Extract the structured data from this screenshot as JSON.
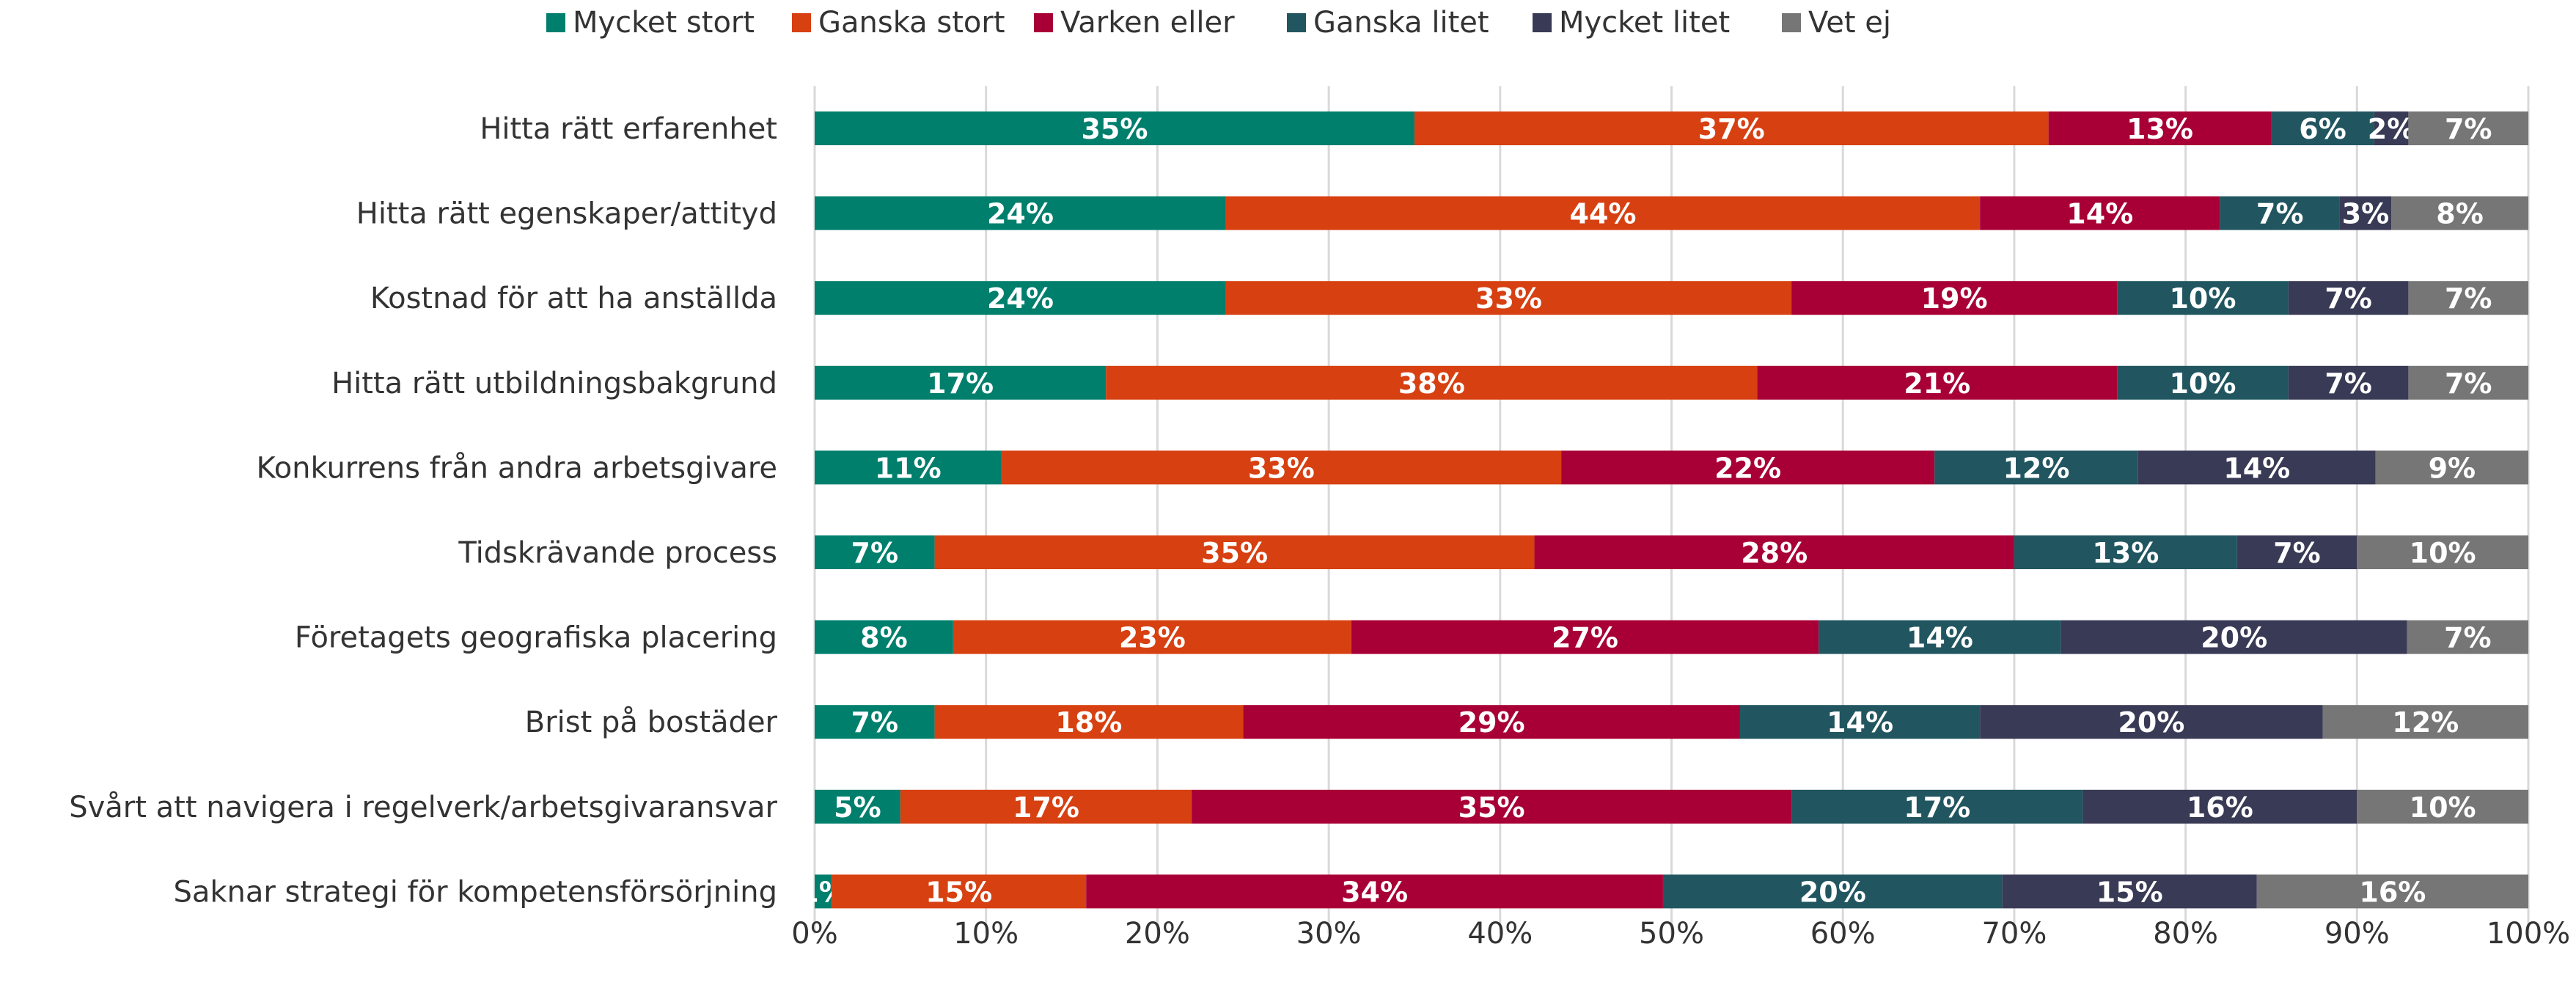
{
  "chart_data": {
    "type": "bar",
    "orientation": "horizontal",
    "stacked": "percent",
    "title": "",
    "xlabel": "",
    "ylabel": "",
    "xlim": [
      0,
      100
    ],
    "x_ticks": [
      "0%",
      "10%",
      "20%",
      "30%",
      "40%",
      "50%",
      "60%",
      "70%",
      "80%",
      "90%",
      "100%"
    ],
    "grid": "vertical",
    "legend_position": "top",
    "categories": [
      "Hitta rätt erfarenhet",
      "Hitta rätt egenskaper/attityd",
      "Kostnad för att ha anställda",
      "Hitta rätt utbildningsbakgrund",
      "Konkurrens från andra arbetsgivare",
      "Tidskrävande process",
      "Företagets geografiska placering",
      "Brist på bostäder",
      "Svårt att navigera i regelverk/arbetsgivaransvar",
      "Saknar strategi för kompetensförsörjning"
    ],
    "series": [
      {
        "name": "Mycket stort",
        "color": "#007f6d",
        "values": [
          35,
          24,
          24,
          17,
          11,
          7,
          8,
          7,
          5,
          1
        ]
      },
      {
        "name": "Ganska stort",
        "color": "#d74011",
        "values": [
          37,
          44,
          33,
          38,
          33,
          35,
          23,
          18,
          17,
          15
        ]
      },
      {
        "name": "Varken eller",
        "color": "#a80036",
        "values": [
          13,
          14,
          19,
          21,
          22,
          28,
          27,
          29,
          35,
          34
        ]
      },
      {
        "name": "Ganska litet",
        "color": "#215660",
        "values": [
          6,
          7,
          10,
          10,
          12,
          13,
          14,
          14,
          17,
          20
        ]
      },
      {
        "name": "Mycket litet",
        "color": "#393a55",
        "values": [
          2,
          3,
          7,
          7,
          14,
          7,
          20,
          20,
          16,
          15
        ]
      },
      {
        "name": "Vet ej",
        "color": "#767676",
        "values": [
          7,
          8,
          7,
          7,
          9,
          10,
          7,
          12,
          10,
          16
        ]
      }
    ]
  }
}
